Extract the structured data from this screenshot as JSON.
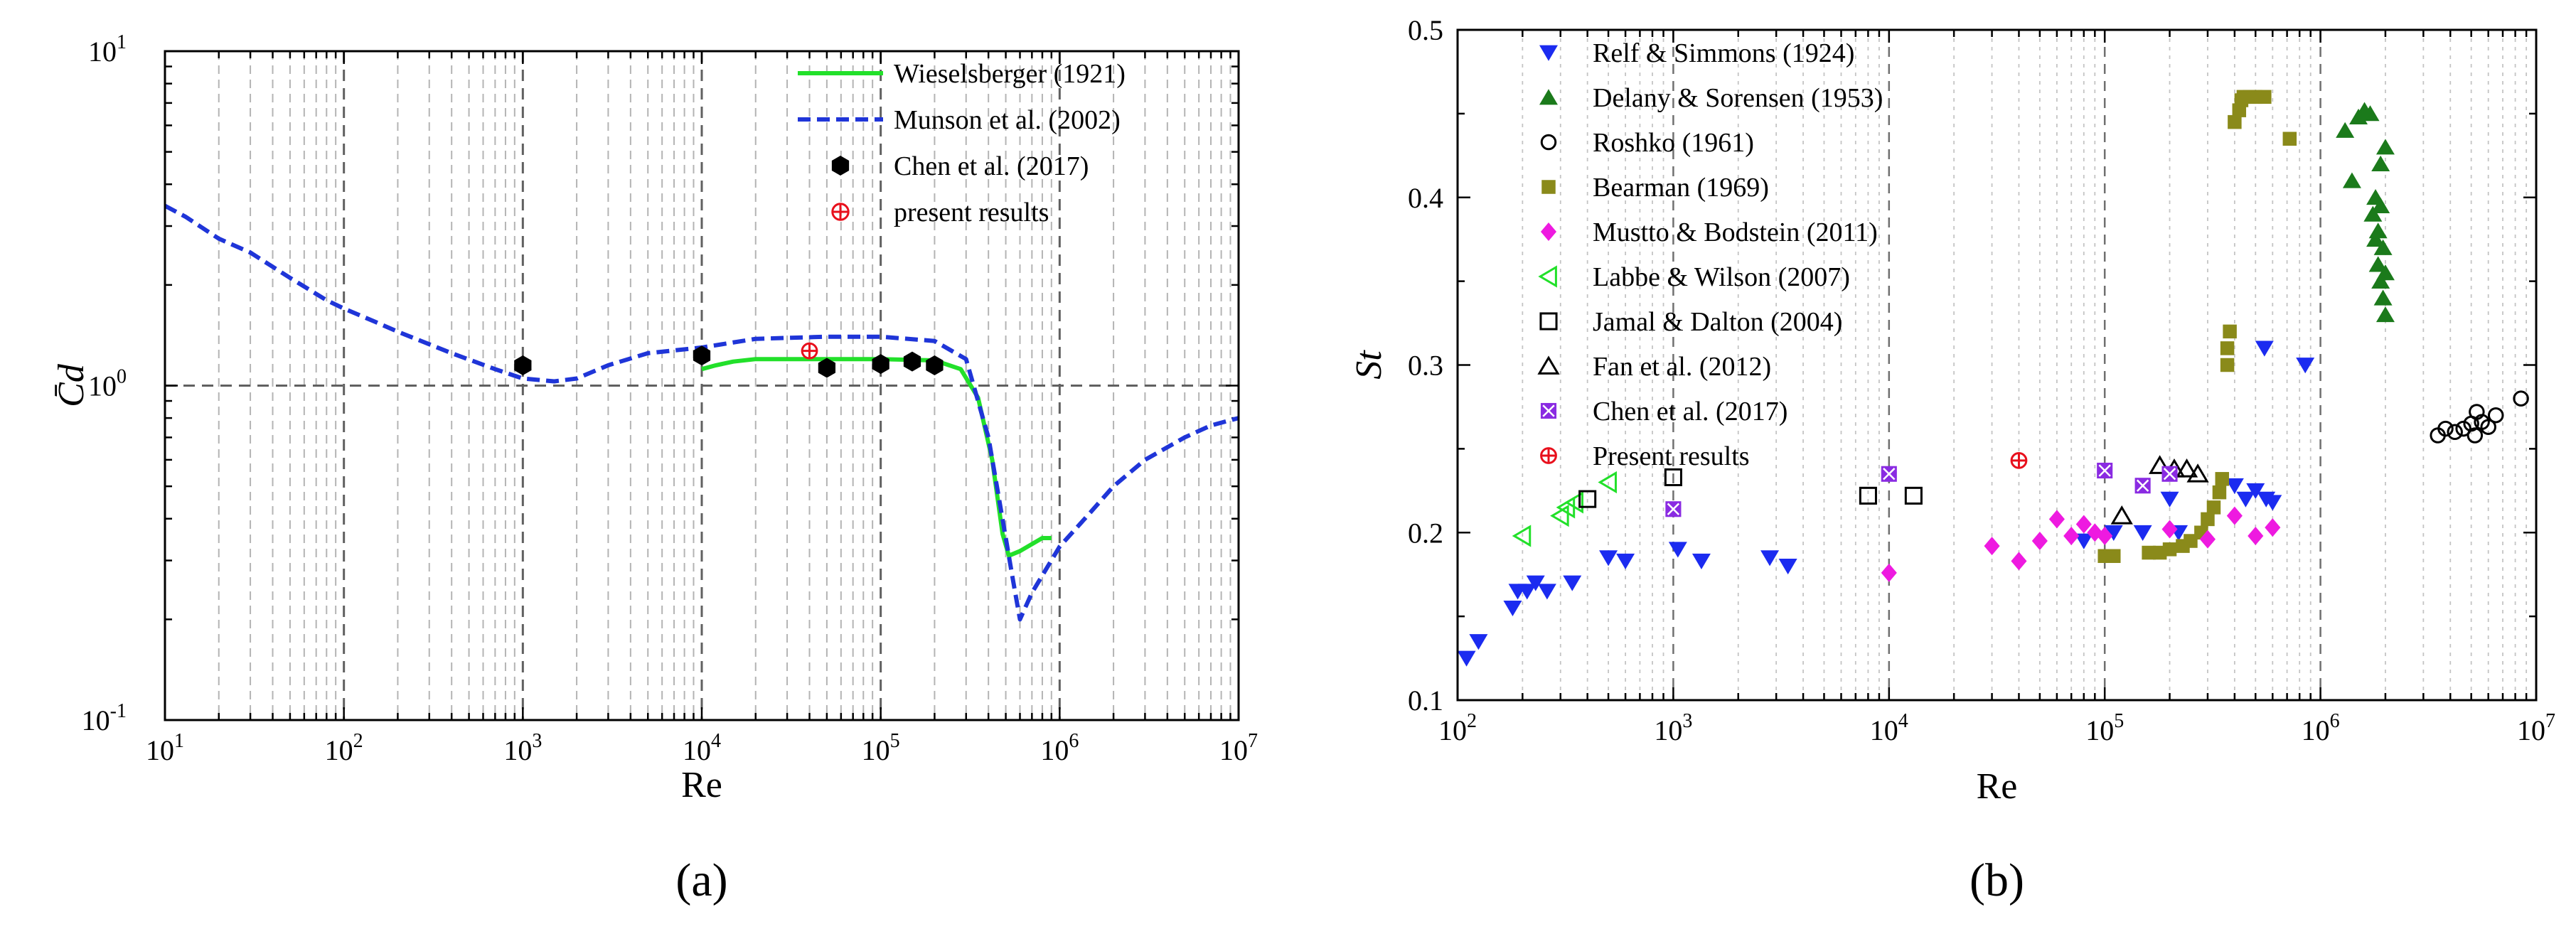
{
  "chart_data": [
    {
      "type": "line",
      "panel_label": "(a)",
      "xlabel": "Re",
      "ylabel": "C̄d",
      "x_scale": "log",
      "y_scale": "log",
      "xlim": [
        10,
        10000000
      ],
      "ylim": [
        0.1,
        10
      ],
      "x_tick_labels": [
        {
          "value": 10,
          "base": "10",
          "exp": "1"
        },
        {
          "value": 100,
          "base": "10",
          "exp": "2"
        },
        {
          "value": 1000,
          "base": "10",
          "exp": "3"
        },
        {
          "value": 10000,
          "base": "10",
          "exp": "4"
        },
        {
          "value": 100000,
          "base": "10",
          "exp": "5"
        },
        {
          "value": 1000000,
          "base": "10",
          "exp": "6"
        },
        {
          "value": 10000000,
          "base": "10",
          "exp": "7"
        }
      ],
      "y_tick_labels": [
        {
          "value": 0.1,
          "base": "10",
          "exp": "-1"
        },
        {
          "value": 1,
          "base": "10",
          "exp": "0"
        },
        {
          "value": 10,
          "base": "10",
          "exp": "1"
        }
      ],
      "grid": true,
      "legend_position": "top-right",
      "series": [
        {
          "name": "Wieselsberger (1921)",
          "kind": "line",
          "color": "#22e02a",
          "style": "solid",
          "points": [
            [
              10000,
              1.12
            ],
            [
              12000,
              1.15
            ],
            [
              15000,
              1.18
            ],
            [
              20000,
              1.2
            ],
            [
              40000,
              1.2
            ],
            [
              100000,
              1.2
            ],
            [
              200000,
              1.19
            ],
            [
              280000,
              1.12
            ],
            [
              350000,
              0.92
            ],
            [
              420000,
              0.6
            ],
            [
              480000,
              0.36
            ],
            [
              520000,
              0.31
            ],
            [
              600000,
              0.32
            ],
            [
              800000,
              0.35
            ],
            [
              900000,
              0.35
            ]
          ]
        },
        {
          "name": "Munson et al. (2002)",
          "kind": "line",
          "color": "#1f35d8",
          "style": "dashed",
          "points": [
            [
              10,
              3.45
            ],
            [
              13,
              3.2
            ],
            [
              20,
              2.75
            ],
            [
              30,
              2.5
            ],
            [
              50,
              2.1
            ],
            [
              80,
              1.8
            ],
            [
              100,
              1.7
            ],
            [
              150,
              1.55
            ],
            [
              200,
              1.45
            ],
            [
              400,
              1.25
            ],
            [
              700,
              1.12
            ],
            [
              1000,
              1.05
            ],
            [
              1500,
              1.03
            ],
            [
              2000,
              1.05
            ],
            [
              3000,
              1.15
            ],
            [
              5000,
              1.25
            ],
            [
              10000,
              1.3
            ],
            [
              20000,
              1.38
            ],
            [
              50000,
              1.4
            ],
            [
              100000,
              1.4
            ],
            [
              200000,
              1.36
            ],
            [
              300000,
              1.2
            ],
            [
              400000,
              0.7
            ],
            [
              500000,
              0.35
            ],
            [
              550000,
              0.26
            ],
            [
              600000,
              0.2
            ],
            [
              700000,
              0.24
            ],
            [
              1000000,
              0.33
            ],
            [
              1500000,
              0.42
            ],
            [
              2000000,
              0.5
            ],
            [
              3000000,
              0.6
            ],
            [
              5000000,
              0.7
            ],
            [
              7000000,
              0.76
            ],
            [
              10000000,
              0.8
            ]
          ]
        },
        {
          "name": "Chen et al. (2017)",
          "kind": "marker",
          "marker": "hexagon-filled",
          "color": "#000000",
          "points": [
            [
              1000,
              1.15
            ],
            [
              10000,
              1.23
            ],
            [
              50000,
              1.13
            ],
            [
              100000,
              1.16
            ],
            [
              150000,
              1.18
            ],
            [
              200000,
              1.15
            ]
          ]
        },
        {
          "name": "present results",
          "kind": "marker",
          "marker": "circle-plus",
          "color": "#e8101c",
          "points": [
            [
              40000,
              1.27
            ]
          ]
        }
      ]
    },
    {
      "type": "scatter",
      "panel_label": "(b)",
      "xlabel": "Re",
      "ylabel": "St",
      "x_scale": "log",
      "y_scale": "linear",
      "xlim": [
        100,
        10000000
      ],
      "ylim": [
        0.1,
        0.5
      ],
      "x_tick_labels": [
        {
          "value": 100,
          "base": "10",
          "exp": "2"
        },
        {
          "value": 1000,
          "base": "10",
          "exp": "3"
        },
        {
          "value": 10000,
          "base": "10",
          "exp": "4"
        },
        {
          "value": 100000,
          "base": "10",
          "exp": "5"
        },
        {
          "value": 1000000,
          "base": "10",
          "exp": "6"
        },
        {
          "value": 10000000,
          "base": "10",
          "exp": "7"
        }
      ],
      "y_ticks": [
        "0.1",
        "0.2",
        "0.3",
        "0.4",
        "0.5"
      ],
      "grid": true,
      "legend_position": "top-left",
      "series": [
        {
          "name": "Relf & Simmons (1924)",
          "marker": "triangle-down-filled",
          "color": "#1b2bf0",
          "points": [
            [
              110,
              0.125
            ],
            [
              125,
              0.135
            ],
            [
              180,
              0.155
            ],
            [
              190,
              0.165
            ],
            [
              210,
              0.165
            ],
            [
              230,
              0.17
            ],
            [
              260,
              0.165
            ],
            [
              340,
              0.17
            ],
            [
              500,
              0.185
            ],
            [
              600,
              0.183
            ],
            [
              1050,
              0.19
            ],
            [
              1350,
              0.183
            ],
            [
              2800,
              0.185
            ],
            [
              3400,
              0.18
            ],
            [
              80000,
              0.195
            ],
            [
              110000,
              0.2
            ],
            [
              150000,
              0.2
            ],
            [
              200000,
              0.22
            ],
            [
              220000,
              0.2
            ],
            [
              400000,
              0.228
            ],
            [
              450000,
              0.22
            ],
            [
              500000,
              0.225
            ],
            [
              560000,
              0.22
            ],
            [
              600000,
              0.218
            ],
            [
              550000,
              0.31
            ],
            [
              850000,
              0.3
            ]
          ]
        },
        {
          "name": "Delany & Sorensen (1953)",
          "marker": "triangle-filled",
          "color": "#1b7a1b",
          "points": [
            [
              1300000,
              0.44
            ],
            [
              1400000,
              0.41
            ],
            [
              1500000,
              0.448
            ],
            [
              1600000,
              0.452
            ],
            [
              1700000,
              0.45
            ],
            [
              1800000,
              0.4
            ],
            [
              1900000,
              0.42
            ],
            [
              2000000,
              0.43
            ],
            [
              1750000,
              0.39
            ],
            [
              1800000,
              0.375
            ],
            [
              1850000,
              0.36
            ],
            [
              1900000,
              0.35
            ],
            [
              1950000,
              0.34
            ],
            [
              2000000,
              0.33
            ],
            [
              1850000,
              0.38
            ],
            [
              1950000,
              0.37
            ],
            [
              1900000,
              0.395
            ],
            [
              2000000,
              0.355
            ]
          ]
        },
        {
          "name": "Roshko (1961)",
          "marker": "circle-open",
          "color": "#000000",
          "points": [
            [
              3500000,
              0.258
            ],
            [
              3800000,
              0.262
            ],
            [
              4200000,
              0.26
            ],
            [
              4600000,
              0.262
            ],
            [
              5000000,
              0.265
            ],
            [
              5200000,
              0.258
            ],
            [
              5300000,
              0.272
            ],
            [
              5600000,
              0.266
            ],
            [
              6000000,
              0.263
            ],
            [
              6500000,
              0.27
            ],
            [
              8500000,
              0.28
            ]
          ]
        },
        {
          "name": "Bearman (1969)",
          "marker": "square-filled",
          "color": "#8a8a1a",
          "points": [
            [
              100000,
              0.186
            ],
            [
              110000,
              0.186
            ],
            [
              160000,
              0.188
            ],
            [
              180000,
              0.188
            ],
            [
              200000,
              0.19
            ],
            [
              230000,
              0.192
            ],
            [
              250000,
              0.195
            ],
            [
              280000,
              0.2
            ],
            [
              300000,
              0.208
            ],
            [
              320000,
              0.215
            ],
            [
              340000,
              0.224
            ],
            [
              350000,
              0.232
            ],
            [
              370000,
              0.3
            ],
            [
              370000,
              0.31
            ],
            [
              380000,
              0.32
            ],
            [
              400000,
              0.445
            ],
            [
              420000,
              0.452
            ],
            [
              430000,
              0.458
            ],
            [
              440000,
              0.46
            ],
            [
              470000,
              0.46
            ],
            [
              500000,
              0.46
            ],
            [
              550000,
              0.46
            ],
            [
              720000,
              0.435
            ]
          ]
        },
        {
          "name": "Mustto & Bodstein (2011)",
          "marker": "diamond-filled",
          "color": "#ee1ae0",
          "points": [
            [
              10000,
              0.176
            ],
            [
              30000,
              0.192
            ],
            [
              40000,
              0.183
            ],
            [
              50000,
              0.195
            ],
            [
              60000,
              0.208
            ],
            [
              70000,
              0.198
            ],
            [
              80000,
              0.205
            ],
            [
              90000,
              0.2
            ],
            [
              100000,
              0.198
            ],
            [
              200000,
              0.202
            ],
            [
              300000,
              0.196
            ],
            [
              400000,
              0.21
            ],
            [
              500000,
              0.198
            ],
            [
              600000,
              0.203
            ]
          ]
        },
        {
          "name": "Labbe & Wilson (2007)",
          "marker": "triangle-left-open",
          "color": "#22e02a",
          "points": [
            [
              200,
              0.198
            ],
            [
              300,
              0.21
            ],
            [
              320,
              0.215
            ],
            [
              350,
              0.218
            ],
            [
              500,
              0.23
            ]
          ]
        },
        {
          "name": "Jamal & Dalton (2004)",
          "marker": "square-open",
          "color": "#000000",
          "points": [
            [
              400,
              0.22
            ],
            [
              1000,
              0.233
            ],
            [
              8000,
              0.222
            ],
            [
              13000,
              0.222
            ]
          ]
        },
        {
          "name": "Fan et al. (2012)",
          "marker": "triangle-open",
          "color": "#000000",
          "points": [
            [
              120000,
              0.21
            ],
            [
              180000,
              0.24
            ],
            [
              210000,
              0.238
            ],
            [
              240000,
              0.238
            ],
            [
              270000,
              0.235
            ]
          ]
        },
        {
          "name": "Chen et al. (2017)",
          "marker": "square-cross",
          "color": "#8a2be2",
          "points": [
            [
              1000,
              0.214
            ],
            [
              10000,
              0.235
            ],
            [
              100000,
              0.237
            ],
            [
              150000,
              0.228
            ],
            [
              200000,
              0.235
            ]
          ]
        },
        {
          "name": "Present results",
          "marker": "circle-plus",
          "color": "#e8101c",
          "points": [
            [
              40000,
              0.243
            ]
          ]
        }
      ]
    }
  ]
}
